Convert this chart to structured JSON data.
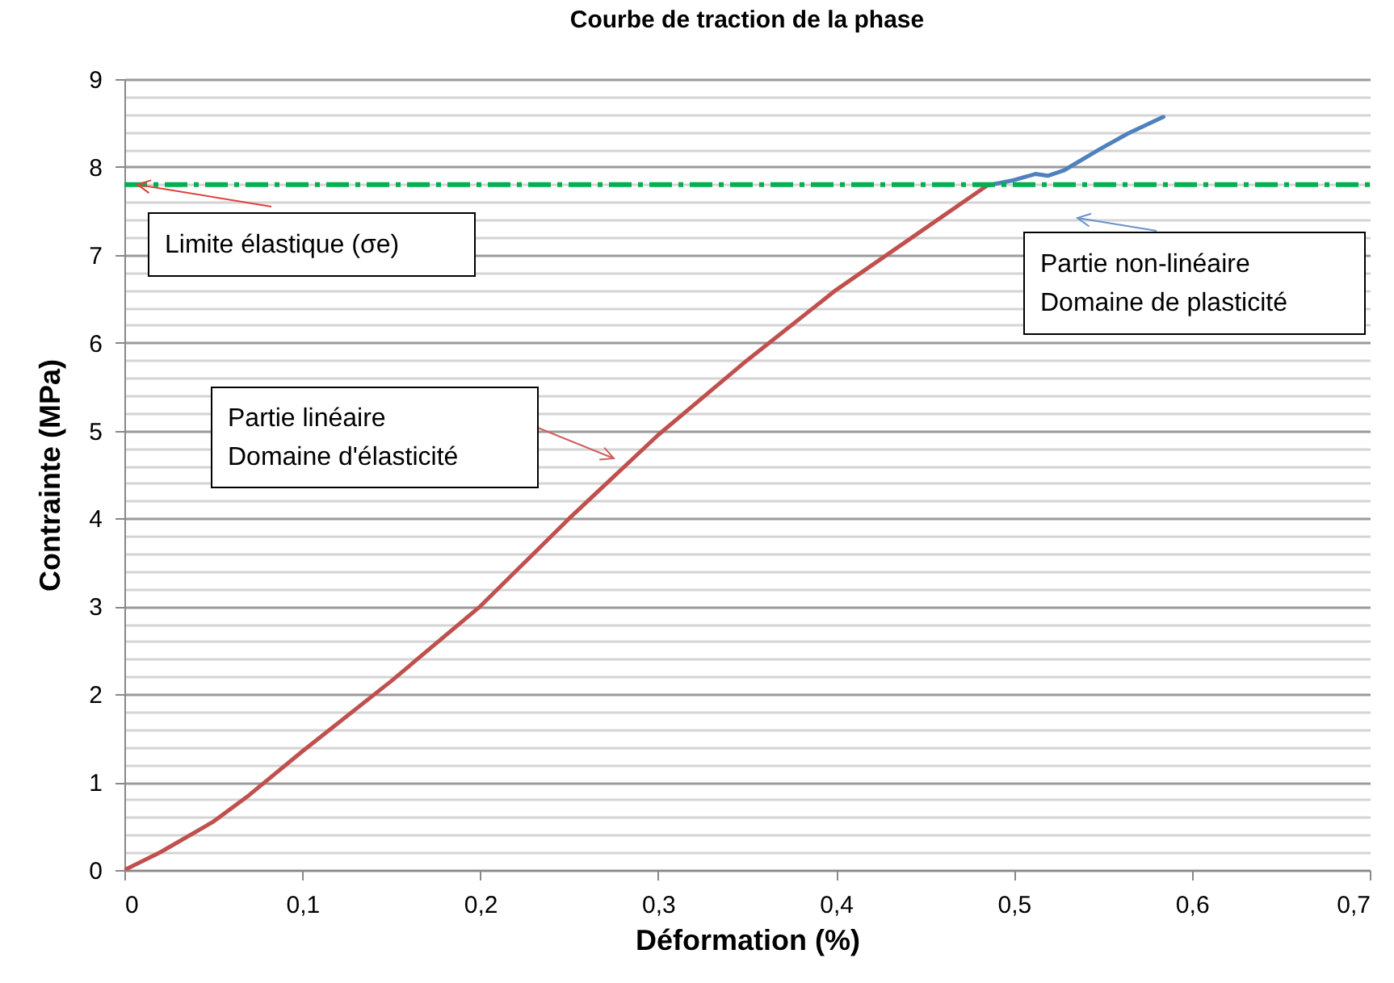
{
  "chart_data": {
    "type": "line",
    "title": "Courbe de traction de la phase",
    "xlabel": "Déformation (%)",
    "ylabel": "Contrainte (MPa)",
    "series": [
      {
        "color": "#c0504d",
        "x": [
          0,
          0.02,
          0.05,
          0.07,
          0.1,
          0.15,
          0.2,
          0.25,
          0.3,
          0.35,
          0.4,
          0.45,
          0.485
        ],
        "values": [
          0,
          0.2,
          0.55,
          0.85,
          1.35,
          2.15,
          3.0,
          4.0,
          4.95,
          5.8,
          6.6,
          7.3,
          7.79
        ]
      },
      {
        "color": "#4f81bd",
        "x": [
          0.485,
          0.5,
          0.512,
          0.519,
          0.528,
          0.548,
          0.564,
          0.584
        ],
        "values": [
          7.79,
          7.85,
          7.92,
          7.9,
          7.96,
          8.2,
          8.38,
          8.57
        ]
      }
    ],
    "xlim": [
      0,
      0.7
    ],
    "xticks": [
      0,
      {
        "value": 0.1,
        "label": "0,1"
      },
      {
        "value": 0.2,
        "label": "0,2"
      },
      {
        "value": 0.3,
        "label": "0,3"
      },
      {
        "value": 0.4,
        "label": "0,4"
      },
      {
        "value": 0.5,
        "label": "0,5"
      },
      {
        "value": 0.6,
        "label": "0,6"
      },
      {
        "value": 0.7,
        "label": "0,7"
      }
    ],
    "ylim": [
      0,
      9
    ],
    "yticks": [
      0,
      {
        "value": 0.2,
        "label": null
      },
      {
        "value": 0.4,
        "label": null
      },
      {
        "value": 0.6,
        "label": null
      },
      {
        "value": 0.8,
        "label": null
      },
      1,
      {
        "value": 1.2,
        "label": null
      },
      {
        "value": 1.4,
        "label": null
      },
      {
        "value": 1.6,
        "label": null
      },
      {
        "value": 1.8,
        "label": null
      },
      2,
      {
        "value": 2.2,
        "label": null
      },
      {
        "value": 2.4,
        "label": null
      },
      {
        "value": 2.6,
        "label": null
      },
      {
        "value": 2.8,
        "label": null
      },
      3,
      {
        "value": 3.2,
        "label": null
      },
      {
        "value": 3.4,
        "label": null
      },
      {
        "value": 3.6,
        "label": null
      },
      {
        "value": 3.8,
        "label": null
      },
      4,
      {
        "value": 4.2,
        "label": null
      },
      {
        "value": 4.4,
        "label": null
      },
      {
        "value": 4.6,
        "label": null
      },
      {
        "value": 4.8,
        "label": null
      },
      5,
      {
        "value": 5.2,
        "label": null
      },
      {
        "value": 5.4,
        "label": null
      },
      {
        "value": 5.6,
        "label": null
      },
      {
        "value": 5.8,
        "label": null
      },
      6,
      {
        "value": 6.2,
        "label": null
      },
      {
        "value": 6.4,
        "label": null
      },
      {
        "value": 6.6,
        "label": null
      },
      {
        "value": 6.8,
        "label": null
      },
      7,
      {
        "value": 7.2,
        "label": null
      },
      {
        "value": 7.4,
        "label": null
      },
      {
        "value": 7.6,
        "label": null
      },
      {
        "value": 7.8,
        "label": null
      },
      8,
      {
        "value": 8.2,
        "label": null
      },
      {
        "value": 8.4,
        "label": null
      },
      {
        "value": 8.6,
        "label": null
      },
      {
        "value": 8.8,
        "label": null
      },
      9
    ],
    "grid": "y",
    "ref_lines": [
      {
        "axis": "y",
        "value": 7.8,
        "label": "Limite élastique (σe)",
        "color": "#00b050",
        "line_style": "dashed"
      }
    ],
    "annotations": [
      "Partie linéaire\nDomaine d'élasticité",
      "Partie non-linéaire\nDomaine de plasticité"
    ]
  }
}
